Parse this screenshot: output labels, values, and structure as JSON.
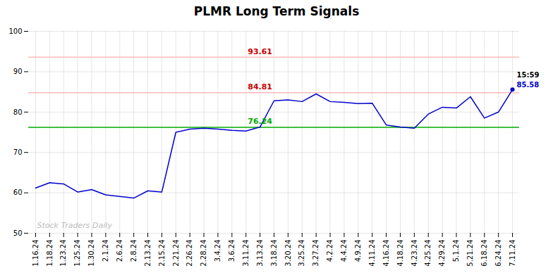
{
  "chart_data": {
    "type": "line",
    "title": "PLMR Long Term Signals",
    "categories": [
      "1.16.24",
      "1.18.24",
      "1.23.24",
      "1.25.24",
      "1.30.24",
      "2.1.24",
      "2.6.24",
      "2.8.24",
      "2.13.24",
      "2.15.24",
      "2.21.24",
      "2.26.24",
      "2.28.24",
      "3.4.24",
      "3.6.24",
      "3.11.24",
      "3.13.24",
      "3.18.24",
      "3.20.24",
      "3.25.24",
      "3.27.24",
      "4.2.24",
      "4.4.24",
      "4.9.24",
      "4.11.24",
      "4.16.24",
      "4.18.24",
      "4.23.24",
      "4.25.24",
      "4.29.24",
      "5.1.24",
      "5.21.24",
      "6.18.24",
      "6.24.24",
      "7.11.24"
    ],
    "values": [
      61.2,
      62.5,
      62.2,
      60.2,
      60.8,
      59.5,
      59.1,
      58.7,
      60.5,
      60.2,
      75.0,
      75.8,
      76.0,
      75.8,
      75.5,
      75.3,
      76.3,
      82.8,
      83.0,
      82.6,
      84.5,
      82.6,
      82.4,
      82.1,
      82.2,
      76.8,
      76.3,
      76.0,
      79.5,
      81.2,
      81.0,
      83.8,
      78.5,
      80.0,
      85.58
    ],
    "color": "#0000cc",
    "ylim": [
      50,
      100
    ],
    "yticks": [
      50,
      60,
      70,
      80,
      90,
      100
    ],
    "grid": true,
    "hlines": [
      {
        "value": 93.61,
        "label": "93.61",
        "color": "#ffbbbb",
        "label_color": "#cc0000",
        "x": "3.13.24"
      },
      {
        "value": 84.81,
        "label": "84.81",
        "color": "#ffbbbb",
        "label_color": "#cc0000",
        "x": "3.13.24"
      },
      {
        "value": 76.24,
        "label": "76.24",
        "color": "#00aa00",
        "label_color": "#00aa00",
        "x": "3.13.24"
      }
    ],
    "annotations": [
      {
        "text": "15:59",
        "color": "#000000"
      },
      {
        "text": "85.58",
        "color": "#0000cc"
      }
    ],
    "watermark": "Stock Traders Daily"
  }
}
